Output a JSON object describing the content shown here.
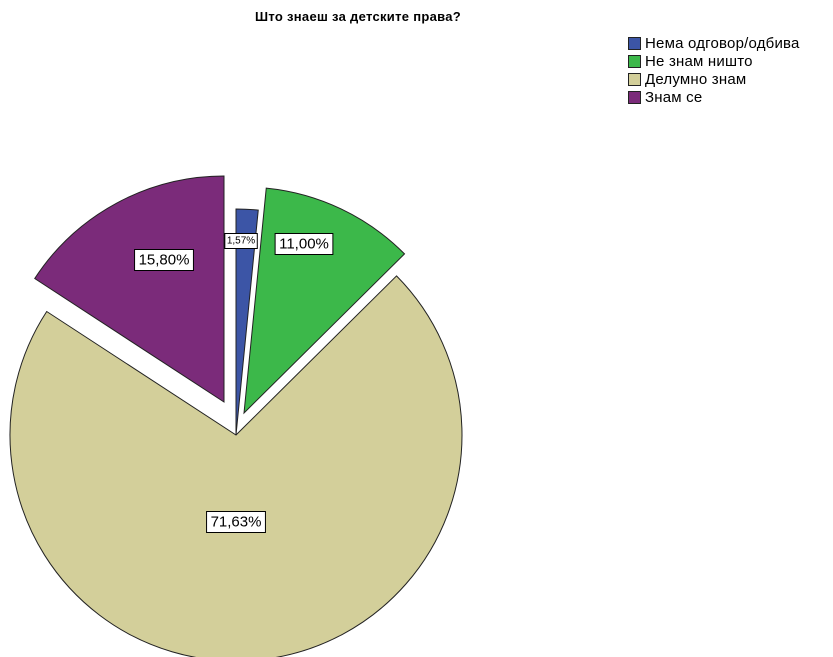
{
  "chart_data": {
    "type": "pie",
    "title": "Што знаеш за детските права?",
    "categories": [
      "Нема одговор/одбива",
      "Не знам ништо",
      "Делумно знам",
      "Знам се"
    ],
    "values": [
      1.57,
      11.0,
      71.63,
      15.8
    ],
    "labels": [
      "1,57%",
      "11,00%",
      "71,63%",
      "15,80%"
    ],
    "colors": [
      "#3c55a6",
      "#3cb84a",
      "#d3cf9a",
      "#7b2b7a"
    ],
    "exploded": true,
    "legend_position": "top-right"
  }
}
